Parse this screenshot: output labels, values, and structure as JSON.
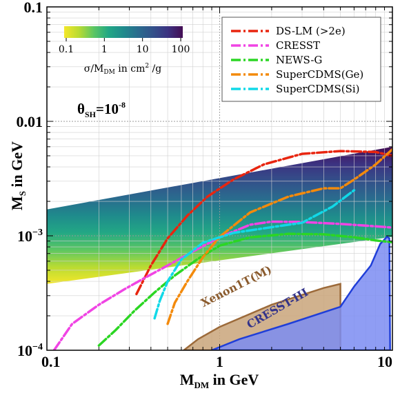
{
  "chart_data": {
    "type": "line",
    "xlabel_main": "M",
    "xlabel_sub": "DM",
    "xlabel_tail": " in GeV",
    "ylabel_main": "M",
    "ylabel_sub": "S",
    "ylabel_tail": " in GeV",
    "x_scale": "log",
    "y_scale": "log",
    "xlim": [
      0.1,
      10
    ],
    "ylim": [
      0.0001,
      0.1
    ],
    "x_ticks": [
      {
        "value": 0.1,
        "label": "0.1"
      },
      {
        "value": 1,
        "label": "1"
      },
      {
        "value": 10,
        "label": "10"
      }
    ],
    "y_ticks": [
      {
        "value": 0.1,
        "label": "0.1"
      },
      {
        "value": 0.01,
        "label": "0.01"
      },
      {
        "value": 0.001,
        "label_base": "10",
        "label_exp": "−3"
      },
      {
        "value": 0.0001,
        "label_base": "10",
        "label_exp": "−4"
      }
    ],
    "grid": true,
    "annotation": {
      "main": "θ",
      "sub": "SH",
      "eq": "=10",
      "exp": "-8"
    },
    "colorbar": {
      "ticks": [
        "0.1",
        "1",
        "10",
        "100"
      ],
      "label_pre": "σ/M",
      "label_sub": "DM",
      "label_post": " in cm",
      "label_exp": "2",
      "label_end": " /g",
      "colors": [
        "#f4e72a",
        "#b8db33",
        "#5bc663",
        "#22a785",
        "#1f8a8c",
        "#2a6b8e",
        "#33508a",
        "#3c3281",
        "#440d54"
      ]
    },
    "scan_band": {
      "x_range": [
        0.1,
        10
      ],
      "lower": [
        [
          0.1,
          0.00038
        ],
        [
          10,
          0.00098
        ]
      ],
      "upper": [
        [
          0.1,
          0.0017
        ],
        [
          10,
          0.006
        ]
      ]
    },
    "excluded_regions": [
      {
        "name": "Xenon1T(M)",
        "fill": "#c9a47a",
        "stroke": "#9c6a3a",
        "points": [
          [
            0.62,
            0.0001
          ],
          [
            0.75,
            0.000125
          ],
          [
            1,
            0.00016
          ],
          [
            2,
            0.00025
          ],
          [
            4,
            0.00035
          ],
          [
            5,
            0.00038
          ],
          [
            5,
            0.0001
          ]
        ]
      },
      {
        "name": "CRESST-III",
        "fill": "#7b8cf2",
        "stroke": "#1f3ed8",
        "points": [
          [
            0.9,
            0.0001
          ],
          [
            1.3,
            0.000125
          ],
          [
            2.5,
            0.00017
          ],
          [
            5,
            0.00024
          ],
          [
            6,
            0.00036
          ],
          [
            7.5,
            0.00055
          ],
          [
            8.5,
            0.00085
          ],
          [
            9.3,
            0.00098
          ],
          [
            9.6,
            0.00095
          ],
          [
            9.7,
            0.0001
          ]
        ]
      }
    ],
    "series": [
      {
        "name": "DS-LM (>2e)",
        "color": "#e8250f",
        "x": [
          0.33,
          0.4,
          0.5,
          0.65,
          0.85,
          1.2,
          1.8,
          3,
          5,
          8,
          10
        ],
        "y": [
          0.00031,
          0.00055,
          0.00095,
          0.0015,
          0.0022,
          0.0031,
          0.0042,
          0.0052,
          0.0055,
          0.0054,
          0.005
        ]
      },
      {
        "name": "CRESST",
        "color": "#f044e4",
        "x": [
          0.11,
          0.14,
          0.2,
          0.28,
          0.38,
          0.5,
          0.7,
          1,
          1.5,
          2,
          3,
          5,
          8,
          10
        ],
        "y": [
          0.0001,
          0.00017,
          0.00025,
          0.00034,
          0.00044,
          0.00055,
          0.00073,
          0.00097,
          0.00125,
          0.00133,
          0.00132,
          0.00127,
          0.00121,
          0.00118
        ]
      },
      {
        "name": "NEWS-G",
        "color": "#2bd623",
        "x": [
          0.2,
          0.25,
          0.32,
          0.42,
          0.55,
          0.75,
          1,
          1.5,
          2.5,
          4,
          6,
          8,
          10
        ],
        "y": [
          0.00011,
          0.00015,
          0.00022,
          0.00032,
          0.00045,
          0.00063,
          0.00082,
          0.00097,
          0.00104,
          0.00103,
          0.00097,
          0.00091,
          0.00088
        ]
      },
      {
        "name": "SuperCDMS(Ge)",
        "color": "#f38a0c",
        "x": [
          0.5,
          0.55,
          0.65,
          0.8,
          1,
          1.5,
          2.5,
          4,
          5,
          6,
          8,
          10
        ],
        "y": [
          0.00017,
          0.00026,
          0.0004,
          0.00065,
          0.00098,
          0.0016,
          0.0022,
          0.0026,
          0.0026,
          0.0031,
          0.0042,
          0.0057
        ]
      },
      {
        "name": "SuperCDMS(Si)",
        "color": "#11d9e8",
        "x": [
          0.42,
          0.45,
          0.5,
          0.6,
          0.8,
          1.2,
          2,
          3,
          4.5,
          6
        ],
        "y": [
          0.00019,
          0.00027,
          0.0004,
          0.00062,
          0.00087,
          0.00106,
          0.00119,
          0.0013,
          0.0018,
          0.0025
        ]
      }
    ]
  }
}
